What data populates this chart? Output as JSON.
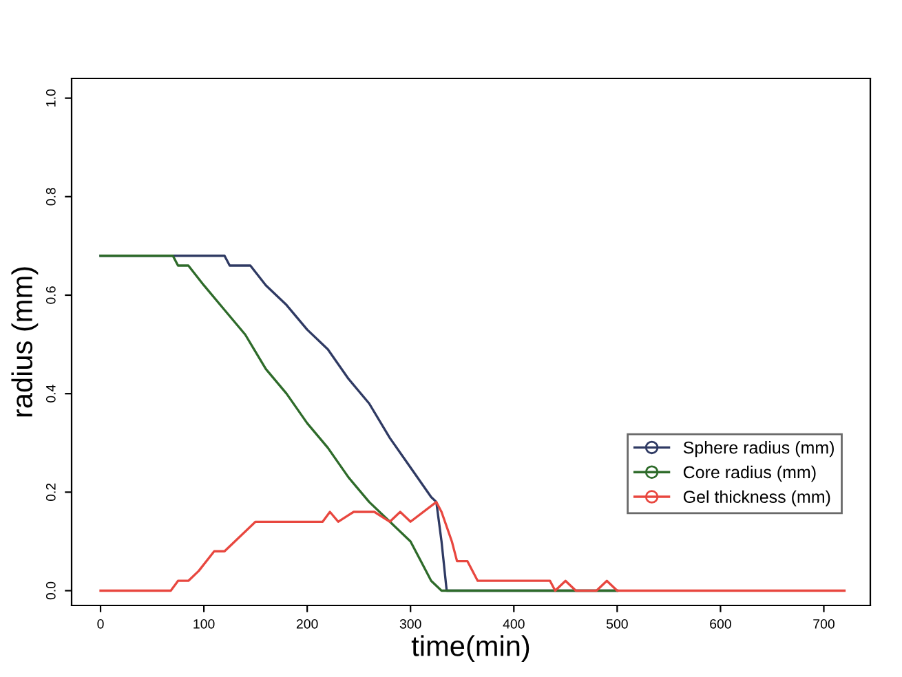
{
  "chart_data": {
    "type": "line",
    "xlabel": "time(min)",
    "ylabel": "radius (mm)",
    "xlim": [
      -28,
      745
    ],
    "ylim": [
      -0.03,
      1.04
    ],
    "xticks": [
      0,
      100,
      200,
      300,
      400,
      500,
      600,
      700
    ],
    "yticks": [
      {
        "value": 0,
        "label": "0.0"
      },
      0.2,
      0.4,
      0.6,
      0.8,
      {
        "value": 1,
        "label": "1.0"
      }
    ],
    "legend": "right",
    "grid": false,
    "series": [
      {
        "name": "Sphere radius (mm)",
        "color": "#2f3a63",
        "x": [
          0,
          120,
          125,
          145,
          160,
          180,
          200,
          220,
          240,
          260,
          280,
          300,
          320,
          325,
          330,
          335,
          500
        ],
        "values": [
          0.68,
          0.68,
          0.66,
          0.66,
          0.62,
          0.58,
          0.53,
          0.49,
          0.43,
          0.38,
          0.31,
          0.25,
          0.19,
          0.18,
          0.1,
          0.0,
          0.0
        ]
      },
      {
        "name": "Core radius (mm)",
        "color": "#2e6b2a",
        "x": [
          0,
          70,
          75,
          85,
          100,
          120,
          140,
          160,
          180,
          200,
          220,
          240,
          260,
          280,
          300,
          310,
          320,
          330,
          500
        ],
        "values": [
          0.68,
          0.68,
          0.66,
          0.66,
          0.62,
          0.57,
          0.52,
          0.45,
          0.4,
          0.34,
          0.29,
          0.23,
          0.18,
          0.14,
          0.1,
          0.06,
          0.02,
          0.0,
          0.0
        ]
      },
      {
        "name": "Gel thickness (mm)",
        "color": "#e8473f",
        "x": [
          0,
          68,
          75,
          85,
          95,
          110,
          120,
          150,
          215,
          222,
          230,
          245,
          265,
          280,
          290,
          300,
          325,
          330,
          340,
          345,
          355,
          365,
          435,
          440,
          450,
          460,
          480,
          490,
          500,
          720
        ],
        "values": [
          0.0,
          0.0,
          0.02,
          0.02,
          0.04,
          0.08,
          0.08,
          0.14,
          0.14,
          0.16,
          0.14,
          0.16,
          0.16,
          0.14,
          0.16,
          0.14,
          0.18,
          0.16,
          0.1,
          0.06,
          0.06,
          0.02,
          0.02,
          0.0,
          0.02,
          0.0,
          0.0,
          0.02,
          0.0,
          0.0
        ]
      }
    ]
  }
}
